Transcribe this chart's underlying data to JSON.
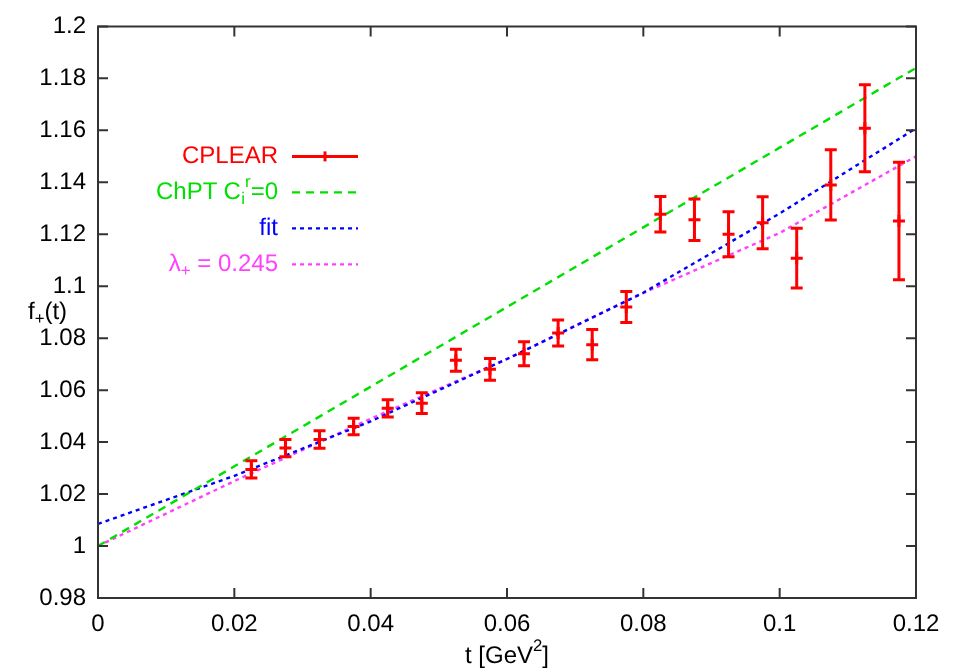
{
  "chart_data": {
    "type": "scatter",
    "xlabel": "t [GeV$^{2}$]",
    "ylabel": "f$_{+}$(t)",
    "xlim": [
      0,
      0.12
    ],
    "xticks": [
      0,
      0.02,
      0.04,
      0.06,
      0.08,
      0.1,
      0.12
    ],
    "ylim": [
      0.98,
      1.2
    ],
    "yticks": [
      0.98,
      1,
      1.02,
      1.04,
      1.06,
      1.08,
      1.1,
      1.12,
      1.14,
      1.16,
      1.18,
      1.2
    ],
    "grid": false,
    "legend": "top left",
    "series": [
      {
        "name": "CPLEAR",
        "type": "scatter",
        "color": "#ff0000",
        "marker": "cross",
        "x": [
          0.0225,
          0.0275,
          0.0325,
          0.0375,
          0.0425,
          0.0475,
          0.0525,
          0.0575,
          0.0625,
          0.0675,
          0.0725,
          0.0775,
          0.0825,
          0.0875,
          0.0925,
          0.0975,
          0.1025,
          0.1075,
          0.1125,
          0.1175
        ],
        "values": [
          1.0295,
          1.0377,
          1.041,
          1.046,
          1.053,
          1.055,
          1.0715,
          1.068,
          1.074,
          1.082,
          1.0775,
          1.092,
          1.1277,
          1.1256,
          1.12,
          1.1244,
          1.1108,
          1.139,
          1.1608,
          1.1251
        ],
        "errors": [
          0.0033,
          0.0033,
          0.0034,
          0.0032,
          0.0033,
          0.004,
          0.0042,
          0.0042,
          0.0046,
          0.005,
          0.0058,
          0.006,
          0.0068,
          0.008,
          0.0087,
          0.01,
          0.0115,
          0.0135,
          0.0167,
          0.0226
        ]
      },
      {
        "name": "ChPT C$_{i}$$^{r}$=0",
        "type": "line",
        "color": "#00e000",
        "line_style": "dashed",
        "x": [
          0,
          0.12
        ],
        "values": [
          1.0,
          1.184
        ]
      },
      {
        "name": "fit",
        "type": "line",
        "color": "#0000ff",
        "line_style": "dotted",
        "x": [
          0,
          0.02,
          0.04,
          0.06,
          0.08,
          0.1,
          0.12
        ],
        "values": [
          1.0085,
          1.027,
          1.048,
          1.072,
          1.0975,
          1.128,
          1.1608
        ]
      },
      {
        "name": "λ$_{+}$ = 0.245",
        "type": "line",
        "color": "#ff40ff",
        "line_style": "dotted",
        "x": [
          0,
          0.02,
          0.04,
          0.06,
          0.08,
          0.1,
          0.12
        ],
        "values": [
          1.0,
          1.025,
          1.049,
          1.072,
          1.0974,
          1.1205,
          1.15
        ]
      }
    ]
  }
}
